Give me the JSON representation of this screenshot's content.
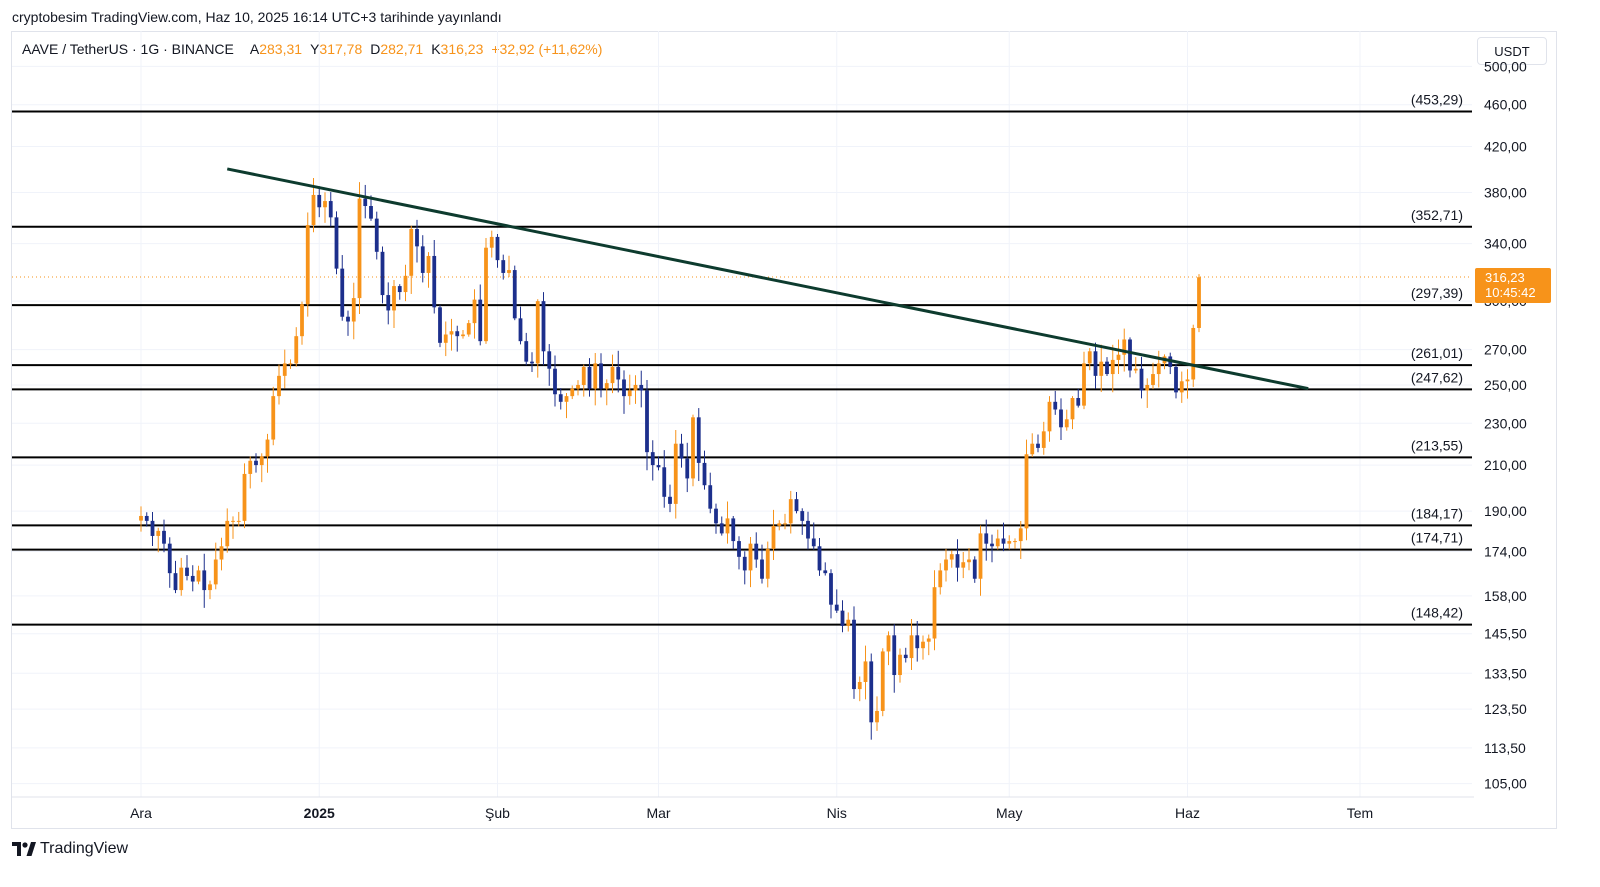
{
  "publication": "cryptobesim TradingView.com, Haz 10, 2025 16:14 UTC+3 tarihinde yayınlandı",
  "legend": {
    "symbol": "AAVE / TetherUS · 1G · BINANCE",
    "open_label": "A",
    "open": "283,31",
    "high_label": "Y",
    "high": "317,78",
    "low_label": "D",
    "low": "282,71",
    "close_label": "K",
    "close": "316,23",
    "change": "+32,92 (+11,62%)"
  },
  "currency_button": "USDT",
  "brand": "TradingView",
  "colors": {
    "up": "#f7931a",
    "down": "#1c2f8c",
    "trendline": "#0d3b2e",
    "level": "#000000",
    "price": "#f7931a"
  },
  "chart_data": {
    "type": "candlestick",
    "scale": "log",
    "ylim": [
      102,
      540
    ],
    "y_ticks": [
      {
        "v": 500,
        "label": "500,00"
      },
      {
        "v": 460,
        "label": "460,00"
      },
      {
        "v": 420,
        "label": "420,00"
      },
      {
        "v": 380,
        "label": "380,00"
      },
      {
        "v": 340,
        "label": "340,00"
      },
      {
        "v": 300,
        "label": "300,00"
      },
      {
        "v": 270,
        "label": "270,00"
      },
      {
        "v": 250,
        "label": "250,00"
      },
      {
        "v": 230,
        "label": "230,00"
      },
      {
        "v": 210,
        "label": "210,00"
      },
      {
        "v": 190,
        "label": "190,00"
      },
      {
        "v": 174,
        "label": "174,00"
      },
      {
        "v": 158,
        "label": "158,00"
      },
      {
        "v": 145.5,
        "label": "145,50"
      },
      {
        "v": 133.5,
        "label": "133,50"
      },
      {
        "v": 123.5,
        "label": "123,50"
      },
      {
        "v": 113.5,
        "label": "113,50"
      },
      {
        "v": 105,
        "label": "105,00"
      }
    ],
    "x_ticks": [
      {
        "day": -6,
        "label": "Ara",
        "bold": false
      },
      {
        "day": 25,
        "label": "2025",
        "bold": true
      },
      {
        "day": 56,
        "label": "Şub",
        "bold": false
      },
      {
        "day": 84,
        "label": "Mar",
        "bold": false
      },
      {
        "day": 115,
        "label": "Nis",
        "bold": false
      },
      {
        "day": 145,
        "label": "May",
        "bold": false
      },
      {
        "day": 176,
        "label": "Haz",
        "bold": false
      },
      {
        "day": 206,
        "label": "Tem",
        "bold": false
      }
    ],
    "levels": [
      {
        "value": 453.29,
        "label": "(453,29)"
      },
      {
        "value": 352.71,
        "label": "(352,71)"
      },
      {
        "value": 297.39,
        "label": "(297,39)"
      },
      {
        "value": 261.01,
        "label": "(261,01)"
      },
      {
        "value": 247.62,
        "label": "(247,62)"
      },
      {
        "value": 213.55,
        "label": "(213,55)"
      },
      {
        "value": 184.17,
        "label": "(184,17)"
      },
      {
        "value": 174.71,
        "label": "(174,71)"
      },
      {
        "value": 148.42,
        "label": "(148,42)"
      }
    ],
    "trendline": {
      "from": {
        "day": 9,
        "value": 400
      },
      "to": {
        "day": 197,
        "value": 248
      }
    },
    "last_price": {
      "value": 316.23,
      "label": "316,23",
      "countdown": "10:45:42"
    },
    "closes": [
      188,
      186,
      180,
      182,
      177,
      166,
      160,
      168,
      165,
      163,
      167,
      160,
      162,
      171,
      176,
      186,
      186,
      186,
      206,
      212,
      210,
      214,
      222,
      244,
      255,
      262,
      262,
      278,
      298,
      354,
      378,
      368,
      373,
      360,
      322,
      290,
      287,
      302,
      375,
      369,
      359,
      334,
      304,
      294,
      310,
      306,
      317,
      351,
      338,
      319,
      331,
      296,
      274,
      279,
      281,
      278,
      279,
      286,
      301,
      275,
      337,
      345,
      328,
      319,
      321,
      289,
      275,
      263,
      262,
      300,
      269,
      259,
      245,
      241,
      244,
      248,
      250,
      260,
      248,
      262,
      248,
      251,
      260,
      253,
      244,
      247,
      250,
      247,
      216,
      210,
      209,
      196,
      193,
      220,
      213,
      204,
      233,
      211,
      201,
      191,
      185,
      181,
      187,
      178,
      172,
      167,
      177,
      171,
      164,
      175,
      184,
      185,
      185,
      195,
      190,
      186,
      179,
      176,
      167,
      166,
      155,
      153,
      148,
      150,
      129,
      131,
      137,
      120,
      123,
      140,
      145,
      133,
      139,
      138,
      145,
      141,
      143,
      144,
      161,
      167,
      171,
      173,
      168,
      170,
      171,
      164,
      181,
      177,
      176,
      179,
      177,
      178,
      178,
      183,
      215,
      220,
      218,
      226,
      241,
      237,
      228,
      232,
      243,
      239,
      262,
      269,
      255,
      263,
      256,
      264,
      267,
      276,
      258,
      259,
      247,
      250,
      256,
      262,
      266,
      260,
      246,
      252,
      253,
      283,
      316
    ],
    "x_origin_day": -6
  }
}
